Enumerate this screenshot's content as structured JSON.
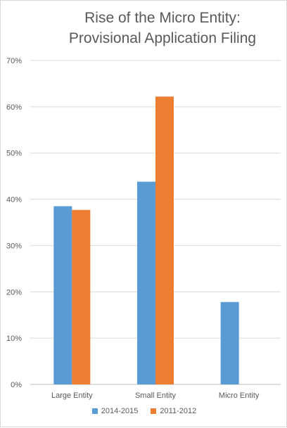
{
  "chart_data": {
    "type": "bar",
    "title_lines": [
      "Rise of the Micro Entity:",
      "Provisional Application Filing"
    ],
    "categories": [
      "Large Entity",
      "Small Entity",
      "Micro Entity"
    ],
    "series": [
      {
        "name": "2014-2015",
        "values": [
          38.5,
          43.8,
          17.8
        ],
        "color": "#5b9bd5"
      },
      {
        "name": "2011-2012",
        "values": [
          37.7,
          62.2,
          null
        ],
        "color": "#ed7d31"
      }
    ],
    "y_ticks": [
      "0%",
      "10%",
      "20%",
      "30%",
      "40%",
      "50%",
      "60%",
      "70%"
    ],
    "ylim": [
      0,
      70
    ],
    "y_unit": "%",
    "grid": true,
    "legend_position": "bottom",
    "xlabel": "",
    "ylabel": ""
  }
}
